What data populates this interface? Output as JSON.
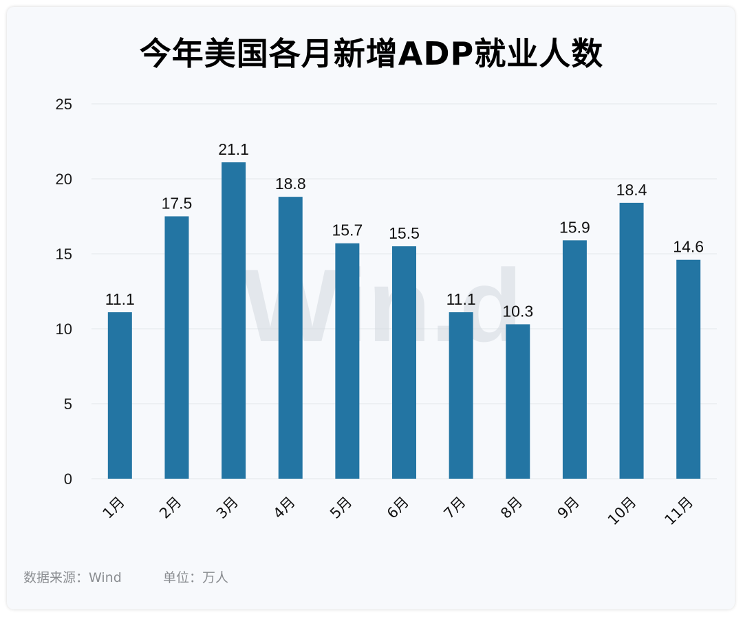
{
  "title": "今年美国各月新增ADP就业人数",
  "watermark": "Win.d",
  "footer": {
    "source": "数据来源：Wind",
    "unit": "单位：万人"
  },
  "colors": {
    "bar": "#2375a3",
    "grid": "#e3e6ea",
    "watermark": "#d4d8de"
  },
  "chart_data": {
    "type": "bar",
    "categories": [
      "1月",
      "2月",
      "3月",
      "4月",
      "5月",
      "6月",
      "7月",
      "8月",
      "9月",
      "10月",
      "11月"
    ],
    "values": [
      11.1,
      17.5,
      21.1,
      18.8,
      15.7,
      15.5,
      11.1,
      10.3,
      15.9,
      18.4,
      14.6
    ],
    "data_labels": [
      "11.1",
      "17.5",
      "21.1",
      "18.8",
      "15.7",
      "15.5",
      "11.1",
      "10.3",
      "15.9",
      "18.4",
      "14.6"
    ],
    "yticks": [
      0,
      5,
      10,
      15,
      20,
      25
    ],
    "ylim": [
      0,
      25
    ],
    "xlabel": "",
    "ylabel": "",
    "grid": true,
    "legend": "none"
  }
}
